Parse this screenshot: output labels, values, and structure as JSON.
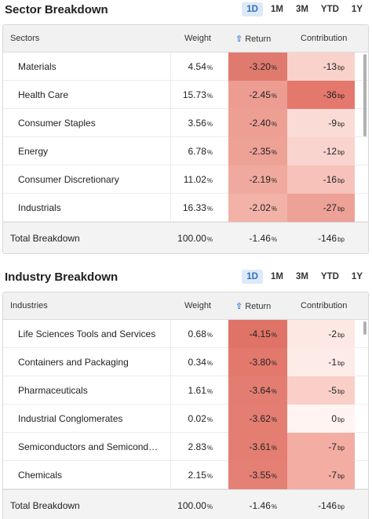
{
  "sector": {
    "title": "Sector Breakdown",
    "periods": [
      "1D",
      "1M",
      "3M",
      "YTD",
      "1Y"
    ],
    "active_period": "1D",
    "columns": {
      "name": "Sectors",
      "weight": "Weight",
      "return": "Return",
      "contribution": "Contribution"
    },
    "rows": [
      {
        "name": "Materials",
        "weight": "4.54",
        "return": "-3.20",
        "contribution": "-13",
        "return_color": "#e07a6e",
        "contribution_color": "#f9d2cc"
      },
      {
        "name": "Health Care",
        "weight": "15.73",
        "return": "-2.45",
        "contribution": "-36",
        "return_color": "#ec9c91",
        "contribution_color": "#e5786c"
      },
      {
        "name": "Consumer Staples",
        "weight": "3.56",
        "return": "-2.40",
        "contribution": "-9",
        "return_color": "#ed9f94",
        "contribution_color": "#fbdbd6"
      },
      {
        "name": "Energy",
        "weight": "6.78",
        "return": "-2.35",
        "contribution": "-12",
        "return_color": "#eea296",
        "contribution_color": "#f9d3cd"
      },
      {
        "name": "Consumer Discretionary",
        "weight": "11.02",
        "return": "-2.19",
        "contribution": "-16",
        "return_color": "#f0a99e",
        "contribution_color": "#f6c2ba"
      },
      {
        "name": "Industrials",
        "weight": "16.33",
        "return": "-2.02",
        "contribution": "-27",
        "return_color": "#f2b2a8",
        "contribution_color": "#eea197"
      }
    ],
    "total": {
      "label": "Total Breakdown",
      "weight": "100.00",
      "return": "-1.46",
      "contribution": "-146"
    },
    "units": {
      "weight": "%",
      "return": "%",
      "contribution": "bp"
    },
    "scroll": {
      "thumb_top_fraction": 0.0,
      "thumb_size_fraction": 0.5
    }
  },
  "industry": {
    "title": "Industry Breakdown",
    "periods": [
      "1D",
      "1M",
      "3M",
      "YTD",
      "1Y"
    ],
    "active_period": "1D",
    "columns": {
      "name": "Industries",
      "weight": "Weight",
      "return": "Return",
      "contribution": "Contribution"
    },
    "rows": [
      {
        "name": "Life Sciences Tools and Services",
        "weight": "0.68",
        "return": "-4.15",
        "contribution": "-2",
        "return_color": "#df7367",
        "contribution_color": "#fde8e4"
      },
      {
        "name": "Containers and Packaging",
        "weight": "0.34",
        "return": "-3.80",
        "contribution": "-1",
        "return_color": "#e3796d",
        "contribution_color": "#fdebe8"
      },
      {
        "name": "Pharmaceuticals",
        "weight": "1.61",
        "return": "-3.64",
        "contribution": "-5",
        "return_color": "#e47d71",
        "contribution_color": "#f9cfc8"
      },
      {
        "name": "Industrial Conglomerates",
        "weight": "0.02",
        "return": "-3.62",
        "contribution": "0",
        "return_color": "#e47e72",
        "contribution_color": "#fff4f2"
      },
      {
        "name": "Semiconductors and Semiconductor Equipment",
        "weight": "2.83",
        "return": "-3.61",
        "contribution": "-7",
        "return_color": "#e47e72",
        "contribution_color": "#f3ada3"
      },
      {
        "name": "Chemicals",
        "weight": "2.15",
        "return": "-3.55",
        "contribution": "-7",
        "return_color": "#e58074",
        "contribution_color": "#f3ada3"
      }
    ],
    "total": {
      "label": "Total Breakdown",
      "weight": "100.00",
      "return": "-1.46",
      "contribution": "-146"
    },
    "units": {
      "weight": "%",
      "return": "%",
      "contribution": "bp"
    },
    "scroll": {
      "thumb_top_fraction": 0.0,
      "thumb_size_fraction": 0.08
    }
  }
}
